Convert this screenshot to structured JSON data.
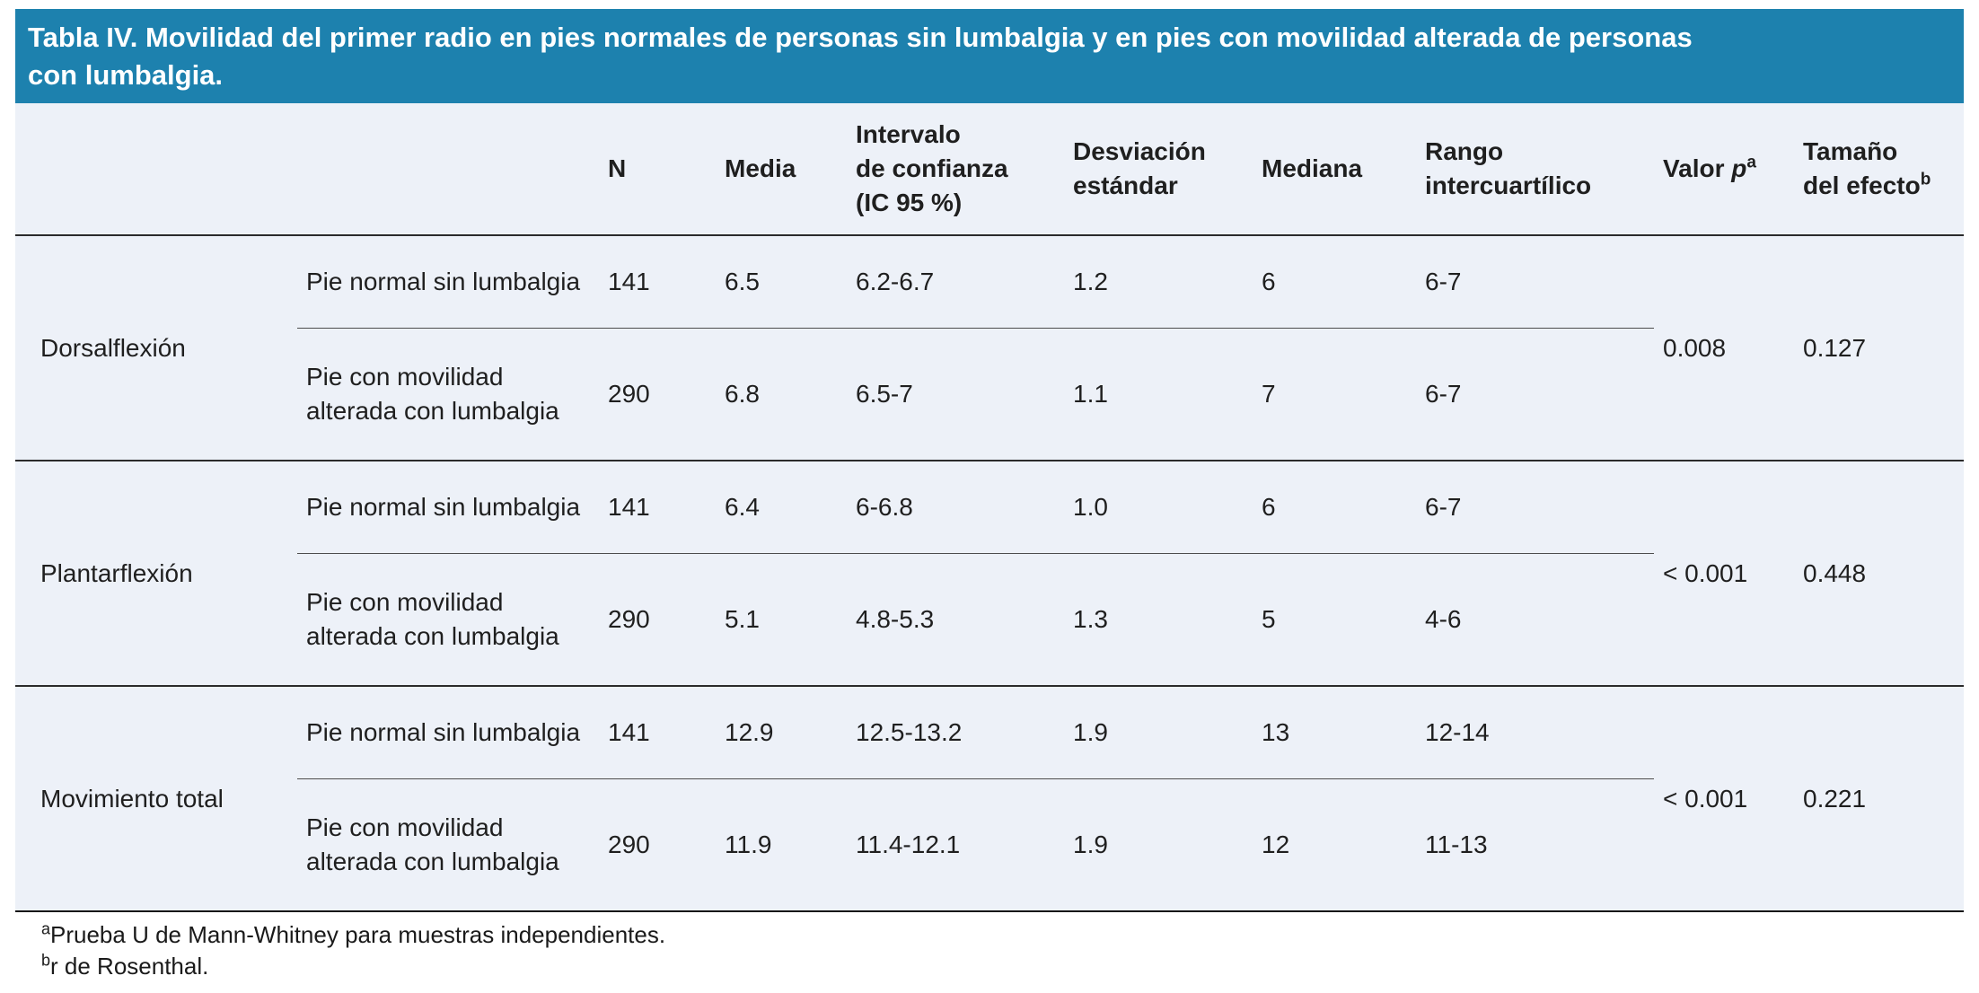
{
  "colors": {
    "title_bar_bg": "#1d81ae",
    "title_text": "#ffffff",
    "table_bg": "#edf1f8",
    "page_bg": "#ffffff",
    "rule_dark": "#2b2b2b",
    "rule_inner": "#4d4d4d"
  },
  "title_bar": {
    "lines": [
      "Tabla IV. Movilidad del primer radio en pies normales de personas sin lumbalgia y en pies con movilidad alterada de personas",
      "con lumbalgia."
    ]
  },
  "table": {
    "headers": {
      "n": "N",
      "media": "Media",
      "ic_lines": [
        "Intervalo",
        "de confianza",
        "(IC 95 %)"
      ],
      "sd_lines": [
        "Desviación",
        "estándar"
      ],
      "mediana": "Mediana",
      "riq_lines": [
        "Rango",
        "intercuartílico"
      ],
      "p_label": "Valor ",
      "p_italic": "p",
      "p_sup": "a",
      "effect_line1": "Tamaño",
      "effect_line2": "del efecto",
      "effect_sup": "b"
    },
    "groups": [
      {
        "name": "Dorsalflexión",
        "p_value": "0.008",
        "effect_size": "0.127",
        "rows": [
          {
            "label": "Pie normal sin lumbalgia",
            "n": "141",
            "media": "6.5",
            "ic": "6.2-6.7",
            "sd": "1.2",
            "mediana": "6",
            "riq": "6-7"
          },
          {
            "label": "Pie con movilidad alterada con lumbalgia",
            "n": "290",
            "media": "6.8",
            "ic": "6.5-7",
            "sd": "1.1",
            "mediana": "7",
            "riq": "6-7"
          }
        ]
      },
      {
        "name": "Plantarflexión",
        "p_value": "< 0.001",
        "effect_size": "0.448",
        "rows": [
          {
            "label": "Pie normal sin lumbalgia",
            "n": "141",
            "media": "6.4",
            "ic": "6-6.8",
            "sd": "1.0",
            "mediana": "6",
            "riq": "6-7"
          },
          {
            "label": "Pie con movilidad alterada con lumbalgia",
            "n": "290",
            "media": "5.1",
            "ic": "4.8-5.3",
            "sd": "1.3",
            "mediana": "5",
            "riq": "4-6"
          }
        ]
      },
      {
        "name": "Movimiento total",
        "p_value": "< 0.001",
        "effect_size": "0.221",
        "rows": [
          {
            "label": "Pie normal sin lumbalgia",
            "n": "141",
            "media": "12.9",
            "ic": "12.5-13.2",
            "sd": "1.9",
            "mediana": "13",
            "riq": "12-14"
          },
          {
            "label": "Pie con movilidad alterada con lumbalgia",
            "n": "290",
            "media": "11.9",
            "ic": "11.4-12.1",
            "sd": "1.9",
            "mediana": "12",
            "riq": "11-13"
          }
        ]
      }
    ],
    "footnotes": [
      {
        "sup": "a",
        "text": "Prueba U de Mann-Whitney para muestras independientes."
      },
      {
        "sup": "b",
        "text": "r de Rosenthal."
      }
    ]
  }
}
